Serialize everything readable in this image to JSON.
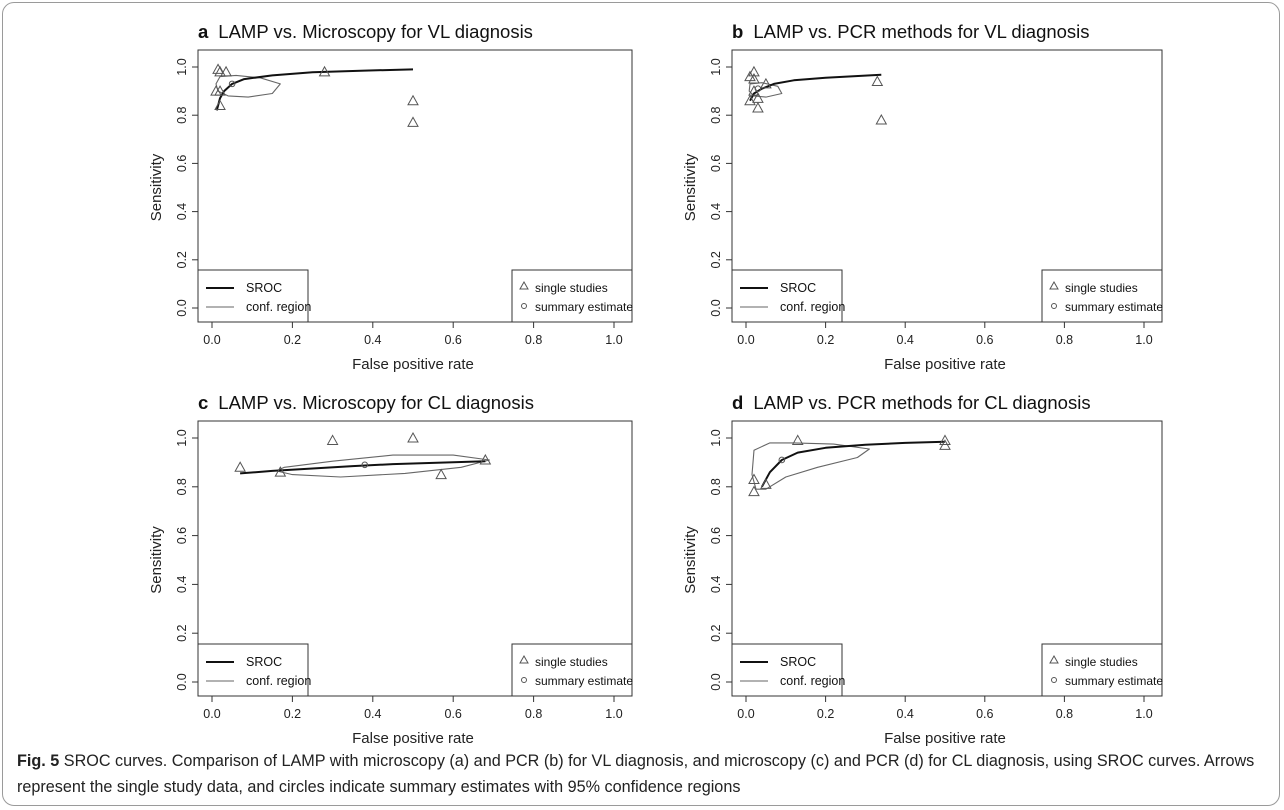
{
  "figure": {
    "caption_label": "Fig. 5",
    "caption_text": "SROC curves. Comparison of LAMP with microscopy (a) and PCR (b) for VL diagnosis, and microscopy (c) and PCR (d) for CL diagnosis, using SROC curves. Arrows represent the single study data, and circles indicate summary estimates with 95% confidence regions"
  },
  "colors": {
    "sroc": "#111111",
    "region": "#666666",
    "points": "#555555",
    "axis": "#333333"
  },
  "chart_data": [
    {
      "type": "scatter",
      "panel_letter": "a",
      "title": "LAMP vs. Microscopy for VL diagnosis",
      "xlabel": "False positive rate",
      "ylabel": "Sensitivity",
      "xlim": [
        0,
        1
      ],
      "ylim": [
        0,
        1
      ],
      "xticks": [
        "0.0",
        "0.2",
        "0.4",
        "0.6",
        "0.8",
        "1.0"
      ],
      "yticks": [
        "0.0",
        "0.2",
        "0.4",
        "0.6",
        "0.8",
        "1.0"
      ],
      "legend_lines": {
        "position": "bottom-left",
        "entries": [
          "SROC",
          "conf. region"
        ]
      },
      "legend_points": {
        "position": "bottom-right",
        "entries": [
          "single studies",
          "summary estimate"
        ]
      },
      "studies": [
        [
          0.01,
          0.9
        ],
        [
          0.015,
          0.99
        ],
        [
          0.02,
          0.98
        ],
        [
          0.035,
          0.98
        ],
        [
          0.02,
          0.9
        ],
        [
          0.02,
          0.84
        ],
        [
          0.28,
          0.98
        ],
        [
          0.5,
          0.86
        ],
        [
          0.5,
          0.77
        ]
      ],
      "summary": [
        0.05,
        0.93
      ],
      "sroc": [
        [
          0.012,
          0.82
        ],
        [
          0.02,
          0.87
        ],
        [
          0.03,
          0.9
        ],
        [
          0.05,
          0.93
        ],
        [
          0.08,
          0.95
        ],
        [
          0.15,
          0.965
        ],
        [
          0.25,
          0.978
        ],
        [
          0.38,
          0.985
        ],
        [
          0.5,
          0.99
        ]
      ],
      "region": [
        [
          0.02,
          0.96
        ],
        [
          0.06,
          0.965
        ],
        [
          0.12,
          0.955
        ],
        [
          0.17,
          0.93
        ],
        [
          0.15,
          0.89
        ],
        [
          0.09,
          0.875
        ],
        [
          0.04,
          0.88
        ],
        [
          0.015,
          0.9
        ],
        [
          0.01,
          0.93
        ]
      ]
    },
    {
      "type": "scatter",
      "panel_letter": "b",
      "title": "LAMP vs. PCR methods for VL diagnosis",
      "xlabel": "False positive rate",
      "ylabel": "Sensitivity",
      "xlim": [
        0,
        1
      ],
      "ylim": [
        0,
        1
      ],
      "xticks": [
        "0.0",
        "0.2",
        "0.4",
        "0.6",
        "0.8",
        "1.0"
      ],
      "yticks": [
        "0.0",
        "0.2",
        "0.4",
        "0.6",
        "0.8",
        "1.0"
      ],
      "legend_lines": {
        "position": "bottom-left",
        "entries": [
          "SROC",
          "conf. region"
        ]
      },
      "legend_points": {
        "position": "bottom-right",
        "entries": [
          "single studies",
          "summary estimate"
        ]
      },
      "studies": [
        [
          0.01,
          0.96
        ],
        [
          0.02,
          0.98
        ],
        [
          0.02,
          0.95
        ],
        [
          0.01,
          0.86
        ],
        [
          0.02,
          0.9
        ],
        [
          0.03,
          0.87
        ],
        [
          0.03,
          0.83
        ],
        [
          0.05,
          0.93
        ],
        [
          0.33,
          0.94
        ],
        [
          0.34,
          0.78
        ]
      ],
      "summary": [
        0.03,
        0.91
      ],
      "sroc": [
        [
          0.01,
          0.86
        ],
        [
          0.02,
          0.89
        ],
        [
          0.04,
          0.91
        ],
        [
          0.07,
          0.93
        ],
        [
          0.12,
          0.945
        ],
        [
          0.2,
          0.955
        ],
        [
          0.27,
          0.962
        ],
        [
          0.34,
          0.968
        ]
      ],
      "region": [
        [
          0.01,
          0.93
        ],
        [
          0.04,
          0.935
        ],
        [
          0.08,
          0.92
        ],
        [
          0.09,
          0.89
        ],
        [
          0.05,
          0.875
        ],
        [
          0.02,
          0.88
        ],
        [
          0.008,
          0.9
        ]
      ]
    },
    {
      "type": "scatter",
      "panel_letter": "c",
      "title": "LAMP vs. Microscopy for CL diagnosis",
      "xlabel": "False positive rate",
      "ylabel": "Sensitivity",
      "xlim": [
        0,
        1
      ],
      "ylim": [
        0,
        1
      ],
      "xticks": [
        "0.0",
        "0.2",
        "0.4",
        "0.6",
        "0.8",
        "1.0"
      ],
      "yticks": [
        "0.0",
        "0.2",
        "0.4",
        "0.6",
        "0.8",
        "1.0"
      ],
      "legend_lines": {
        "position": "bottom-left",
        "entries": [
          "SROC",
          "conf. region"
        ]
      },
      "legend_points": {
        "position": "bottom-right",
        "entries": [
          "single studies",
          "summary estimate"
        ]
      },
      "studies": [
        [
          0.07,
          0.88
        ],
        [
          0.17,
          0.86
        ],
        [
          0.3,
          0.99
        ],
        [
          0.5,
          1.0
        ],
        [
          0.57,
          0.85
        ],
        [
          0.68,
          0.91
        ]
      ],
      "summary": [
        0.38,
        0.89
      ],
      "sroc": [
        [
          0.07,
          0.855
        ],
        [
          0.15,
          0.865
        ],
        [
          0.25,
          0.875
        ],
        [
          0.35,
          0.885
        ],
        [
          0.45,
          0.893
        ],
        [
          0.55,
          0.898
        ],
        [
          0.68,
          0.905
        ]
      ],
      "region": [
        [
          0.18,
          0.88
        ],
        [
          0.3,
          0.905
        ],
        [
          0.45,
          0.93
        ],
        [
          0.6,
          0.93
        ],
        [
          0.69,
          0.91
        ],
        [
          0.62,
          0.88
        ],
        [
          0.48,
          0.855
        ],
        [
          0.32,
          0.84
        ],
        [
          0.2,
          0.85
        ],
        [
          0.16,
          0.865
        ]
      ]
    },
    {
      "type": "scatter",
      "panel_letter": "d",
      "title": "LAMP vs. PCR methods for CL diagnosis",
      "xlabel": "False positive rate",
      "ylabel": "Sensitivity",
      "xlim": [
        0,
        1
      ],
      "ylim": [
        0,
        1
      ],
      "xticks": [
        "0.0",
        "0.2",
        "0.4",
        "0.6",
        "0.8",
        "1.0"
      ],
      "yticks": [
        "0.0",
        "0.2",
        "0.4",
        "0.6",
        "0.8",
        "1.0"
      ],
      "legend_lines": {
        "position": "bottom-left",
        "entries": [
          "SROC",
          "conf. region"
        ]
      },
      "legend_points": {
        "position": "bottom-right",
        "entries": [
          "single studies",
          "summary estimate"
        ]
      },
      "studies": [
        [
          0.02,
          0.83
        ],
        [
          0.02,
          0.78
        ],
        [
          0.05,
          0.81
        ],
        [
          0.13,
          0.99
        ],
        [
          0.5,
          0.99
        ],
        [
          0.5,
          0.97
        ]
      ],
      "summary": [
        0.09,
        0.91
      ],
      "sroc": [
        [
          0.04,
          0.8
        ],
        [
          0.06,
          0.86
        ],
        [
          0.09,
          0.91
        ],
        [
          0.13,
          0.94
        ],
        [
          0.2,
          0.96
        ],
        [
          0.3,
          0.972
        ],
        [
          0.4,
          0.98
        ],
        [
          0.5,
          0.985
        ]
      ],
      "region": [
        [
          0.02,
          0.95
        ],
        [
          0.06,
          0.98
        ],
        [
          0.12,
          0.98
        ],
        [
          0.22,
          0.975
        ],
        [
          0.31,
          0.955
        ],
        [
          0.28,
          0.92
        ],
        [
          0.18,
          0.88
        ],
        [
          0.1,
          0.84
        ],
        [
          0.05,
          0.79
        ],
        [
          0.025,
          0.79
        ],
        [
          0.015,
          0.85
        ]
      ]
    }
  ]
}
